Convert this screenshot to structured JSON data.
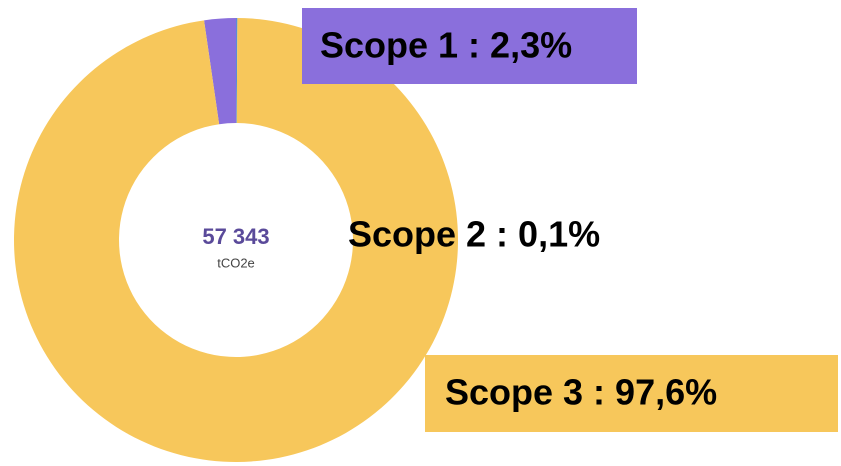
{
  "chart_data": {
    "type": "pie",
    "donut": true,
    "values": [
      2.3,
      0.1,
      97.6
    ],
    "value_labels": [
      "Scope 1 : 2,3%",
      "Scope 2 : 0,1%",
      "Scope 3 : 97,6%"
    ],
    "colors": [
      "#8a6fdc",
      "#5b8bd9",
      "#f7c75b"
    ],
    "center_value": "57 343",
    "center_unit": "tCO2e"
  }
}
